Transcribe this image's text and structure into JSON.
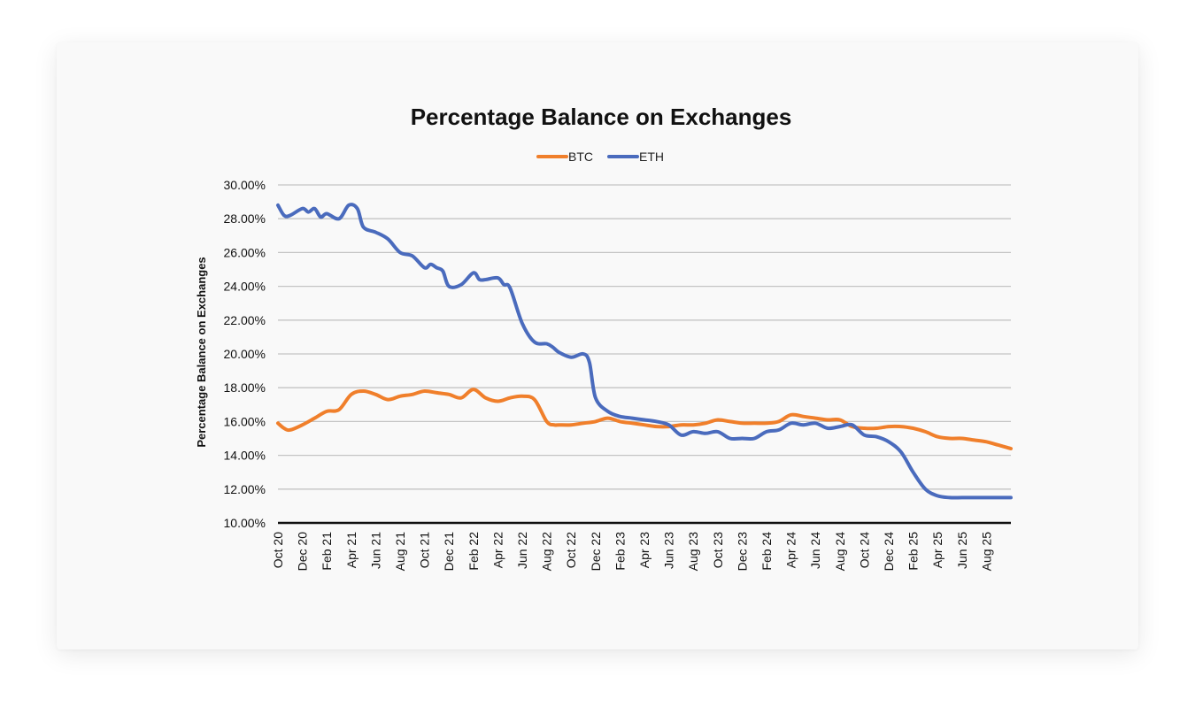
{
  "chart_data": {
    "type": "line",
    "title": "Percentage Balance on Exchanges",
    "ylabel": "Percentage Balance on Exchanges",
    "xlabel": "",
    "ylim": [
      0.1,
      0.3
    ],
    "y_ticks": [
      0.1,
      0.12,
      0.14,
      0.16,
      0.18,
      0.2,
      0.22,
      0.24,
      0.26,
      0.28,
      0.3
    ],
    "y_tick_labels": [
      "10.00%",
      "12.00%",
      "14.00%",
      "16.00%",
      "18.00%",
      "20.00%",
      "22.00%",
      "24.00%",
      "26.00%",
      "28.00%",
      "30.00%"
    ],
    "x_ticks": [
      "Oct 20",
      "Dec 20",
      "Feb 21",
      "Apr 21",
      "Jun 21",
      "Aug 21",
      "Oct 21",
      "Dec 21",
      "Feb 22",
      "Apr 22",
      "Jun 22",
      "Aug 22",
      "Oct 22",
      "Dec 22",
      "Feb 23",
      "Apr 23",
      "Jun 23",
      "Aug 23",
      "Oct 23",
      "Dec 23",
      "Feb 24",
      "Apr 24",
      "Jun 24",
      "Aug 24",
      "Oct 24",
      "Dec 24",
      "Feb 25",
      "Apr 25",
      "Jun 25",
      "Aug 25"
    ],
    "x_range_months": [
      0,
      60
    ],
    "grid": true,
    "legend": "top-center",
    "series": [
      {
        "name": "BTC",
        "color": "#f07f2b",
        "x": [
          0,
          0.5,
          1,
          2,
          3,
          4,
          5,
          6,
          7,
          8,
          9,
          10,
          11,
          12,
          13,
          14,
          15,
          16,
          17,
          18,
          19,
          20,
          21,
          22,
          22.6,
          23,
          24,
          25,
          26,
          27,
          28,
          29,
          30,
          31,
          32,
          33,
          34,
          35,
          36,
          37,
          38,
          39,
          40,
          41,
          42,
          43,
          44,
          45,
          46,
          47,
          48,
          49,
          50,
          51,
          52,
          53,
          54,
          55,
          56,
          57,
          58,
          59,
          60
        ],
        "values": [
          15.9,
          15.6,
          15.5,
          15.8,
          16.2,
          16.6,
          16.7,
          17.6,
          17.8,
          17.6,
          17.3,
          17.5,
          17.6,
          17.8,
          17.7,
          17.6,
          17.4,
          17.9,
          17.4,
          17.2,
          17.4,
          17.5,
          17.3,
          16.0,
          15.8,
          15.8,
          15.8,
          15.9,
          16.0,
          16.2,
          16.0,
          15.9,
          15.8,
          15.7,
          15.7,
          15.8,
          15.8,
          15.9,
          16.1,
          16.0,
          15.9,
          15.9,
          15.9,
          16.0,
          16.4,
          16.3,
          16.2,
          16.1,
          16.1,
          15.7,
          15.6,
          15.6,
          15.7,
          15.7,
          15.6,
          15.4,
          15.1,
          15.0,
          15.0,
          14.9,
          14.8,
          14.6,
          14.4
        ]
      },
      {
        "name": "ETH",
        "color": "#4a6bbd",
        "x": [
          0,
          0.5,
          1,
          2,
          2.5,
          3,
          3.5,
          4,
          5,
          5.8,
          6.5,
          7,
          8,
          9,
          10,
          11,
          12,
          12.5,
          13,
          13.5,
          14,
          15,
          16,
          16.5,
          17,
          18,
          18.5,
          19,
          20,
          21,
          22,
          22.5,
          23,
          24,
          25,
          25.5,
          26,
          27,
          28,
          29,
          30,
          31,
          32,
          33,
          34,
          35,
          36,
          37,
          38,
          39,
          40,
          41,
          42,
          43,
          44,
          45,
          46,
          47,
          48,
          49,
          50,
          51,
          52,
          53,
          54,
          55,
          56,
          57,
          58,
          59,
          60
        ],
        "values": [
          28.8,
          28.2,
          28.2,
          28.6,
          28.4,
          28.6,
          28.1,
          28.3,
          28.0,
          28.8,
          28.6,
          27.5,
          27.2,
          26.8,
          26.0,
          25.8,
          25.1,
          25.3,
          25.1,
          24.9,
          24.0,
          24.1,
          24.8,
          24.4,
          24.4,
          24.5,
          24.1,
          23.9,
          21.8,
          20.7,
          20.6,
          20.4,
          20.1,
          19.8,
          20.0,
          19.5,
          17.4,
          16.6,
          16.3,
          16.2,
          16.1,
          16.0,
          15.8,
          15.2,
          15.4,
          15.3,
          15.4,
          15.0,
          15.0,
          15.0,
          15.4,
          15.5,
          15.9,
          15.8,
          15.9,
          15.6,
          15.7,
          15.8,
          15.2,
          15.1,
          14.8,
          14.2,
          13.0,
          12.0,
          11.6,
          11.5,
          11.5,
          11.5,
          11.5,
          11.5,
          11.5
        ]
      }
    ]
  }
}
